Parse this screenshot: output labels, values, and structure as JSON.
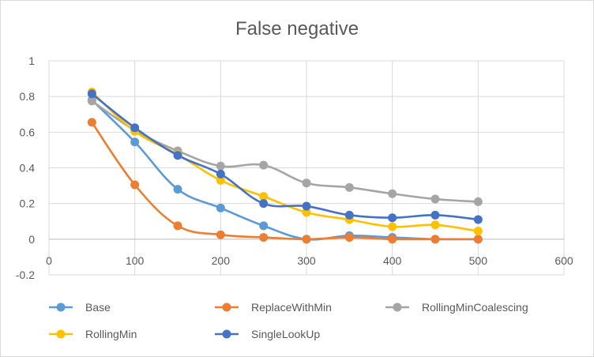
{
  "chart_data": {
    "type": "line",
    "title": "False negative",
    "xlabel": "",
    "ylabel": "",
    "xlim": [
      0,
      600
    ],
    "ylim": [
      -0.2,
      1
    ],
    "x_ticks": [
      "0",
      "100",
      "200",
      "300",
      "400",
      "500",
      "600"
    ],
    "y_ticks": [
      "-0.2",
      "0",
      "0.2",
      "0.4",
      "0.6",
      "0.8",
      "1"
    ],
    "grid": true,
    "legend_position": "bottom",
    "x": [
      50,
      100,
      150,
      200,
      250,
      300,
      350,
      400,
      450,
      500
    ],
    "series": [
      {
        "name": "Base",
        "color": "#5b9bd5",
        "values": [
          0.78,
          0.545,
          0.28,
          0.175,
          0.075,
          0.0,
          0.02,
          0.01,
          0.0,
          0.0
        ]
      },
      {
        "name": "ReplaceWithMin",
        "color": "#ed7d31",
        "values": [
          0.655,
          0.305,
          0.075,
          0.025,
          0.01,
          0.0,
          0.01,
          0.0,
          0.0,
          0.0
        ]
      },
      {
        "name": "RollingMinCoalescing",
        "color": "#a5a5a5",
        "values": [
          0.775,
          0.61,
          0.495,
          0.41,
          0.415,
          0.315,
          0.29,
          0.255,
          0.225,
          0.21
        ]
      },
      {
        "name": "RollingMin",
        "color": "#ffc000",
        "values": [
          0.825,
          0.605,
          0.475,
          0.33,
          0.24,
          0.15,
          0.11,
          0.07,
          0.08,
          0.045
        ]
      },
      {
        "name": "SingleLookUp",
        "color": "#4472c4",
        "values": [
          0.815,
          0.625,
          0.47,
          0.365,
          0.2,
          0.185,
          0.135,
          0.12,
          0.135,
          0.11
        ]
      }
    ]
  }
}
